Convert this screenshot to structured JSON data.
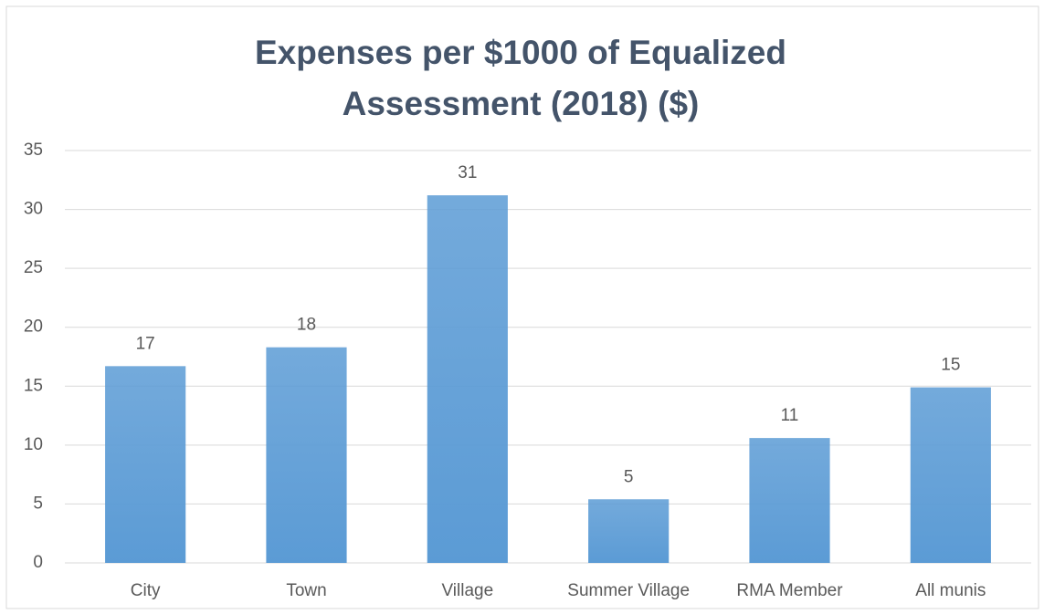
{
  "chart_data": {
    "type": "bar",
    "title": "Expenses per $1000 of Equalized Assessment (2018) ($)",
    "categories": [
      "City",
      "Town",
      "Village",
      "Summer Village",
      "RMA Member",
      "All munis"
    ],
    "values": [
      16.7,
      18.3,
      31.2,
      5.4,
      10.6,
      14.9
    ],
    "value_labels": [
      "17",
      "18",
      "31",
      "5",
      "11",
      "15"
    ],
    "color": "#5b9bd5",
    "ylim": [
      0,
      35
    ],
    "yticks": [
      0,
      5,
      10,
      15,
      20,
      25,
      30,
      35
    ],
    "grid": true
  }
}
